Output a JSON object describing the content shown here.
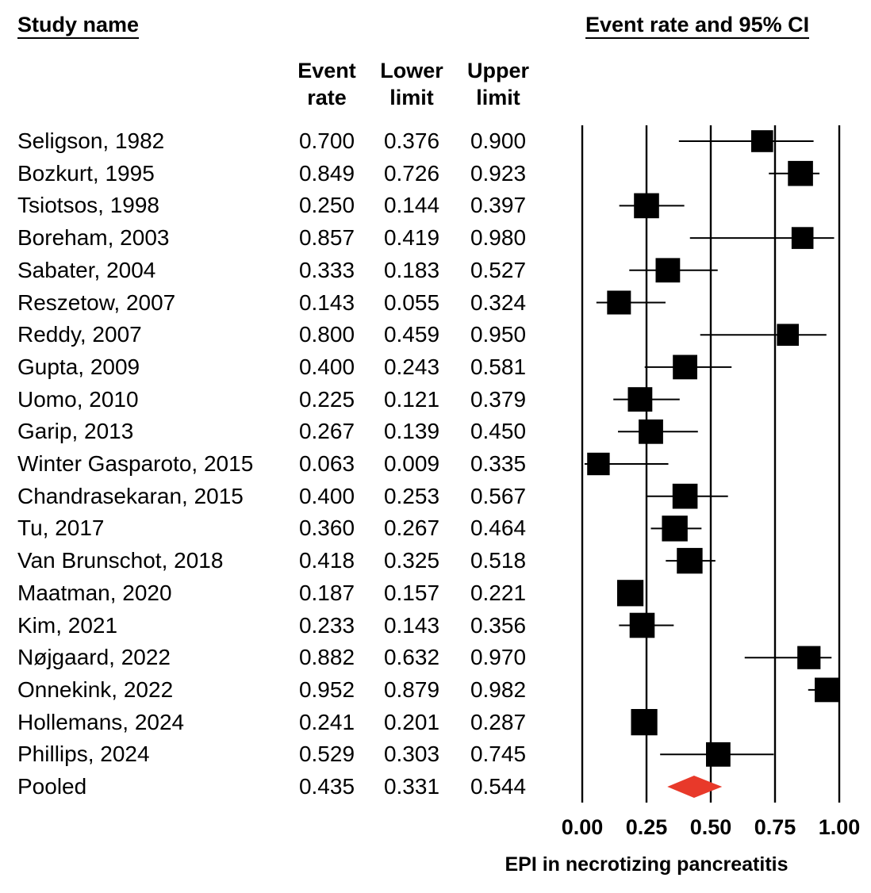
{
  "header": {
    "study_name": "Study name",
    "plot_title": "Event rate and 95% CI",
    "col_event": [
      "Event",
      "rate"
    ],
    "col_lower": [
      "Lower",
      "limit"
    ],
    "col_upper": [
      "Upper",
      "limit"
    ]
  },
  "chart_data": {
    "type": "forest",
    "xlabel": "EPI in necrotizing pancreatitis",
    "xlim": [
      0,
      1
    ],
    "ticks": [
      "0.00",
      "0.25",
      "0.50",
      "0.75",
      "1.00"
    ],
    "tick_values": [
      0,
      0.25,
      0.5,
      0.75,
      1.0
    ],
    "reference_lines": [
      0,
      0.25,
      0.5,
      0.75,
      1.0
    ],
    "square_color": "#000000",
    "pooled_color": "#e8392a",
    "studies": [
      {
        "name": "Seligson, 1982",
        "rate": "0.700",
        "lower": "0.376",
        "upper": "0.900",
        "weight": 0.6
      },
      {
        "name": "Bozkurt, 1995",
        "rate": "0.849",
        "lower": "0.726",
        "upper": "0.923",
        "weight": 0.85
      },
      {
        "name": "Tsiotsos, 1998",
        "rate": "0.250",
        "lower": "0.144",
        "upper": "0.397",
        "weight": 0.85
      },
      {
        "name": "Boreham, 2003",
        "rate": "0.857",
        "lower": "0.419",
        "upper": "0.980",
        "weight": 0.6
      },
      {
        "name": "Sabater, 2004",
        "rate": "0.333",
        "lower": "0.183",
        "upper": "0.527",
        "weight": 0.8
      },
      {
        "name": "Reszetow, 2007",
        "rate": "0.143",
        "lower": "0.055",
        "upper": "0.324",
        "weight": 0.75
      },
      {
        "name": "Reddy, 2007",
        "rate": "0.800",
        "lower": "0.459",
        "upper": "0.950",
        "weight": 0.6
      },
      {
        "name": "Gupta, 2009",
        "rate": "0.400",
        "lower": "0.243",
        "upper": "0.581",
        "weight": 0.8
      },
      {
        "name": "Uomo, 2010",
        "rate": "0.225",
        "lower": "0.121",
        "upper": "0.379",
        "weight": 0.8
      },
      {
        "name": "Garip, 2013",
        "rate": "0.267",
        "lower": "0.139",
        "upper": "0.450",
        "weight": 0.8
      },
      {
        "name": "Winter Gasparoto, 2015",
        "rate": "0.063",
        "lower": "0.009",
        "upper": "0.335",
        "weight": 0.65
      },
      {
        "name": "Chandrasekaran, 2015",
        "rate": "0.400",
        "lower": "0.253",
        "upper": "0.567",
        "weight": 0.85
      },
      {
        "name": "Tu, 2017",
        "rate": "0.360",
        "lower": "0.267",
        "upper": "0.464",
        "weight": 0.9
      },
      {
        "name": "Van Brunschot, 2018",
        "rate": "0.418",
        "lower": "0.325",
        "upper": "0.518",
        "weight": 0.9
      },
      {
        "name": "Maatman, 2020",
        "rate": "0.187",
        "lower": "0.157",
        "upper": "0.221",
        "weight": 0.95
      },
      {
        "name": "Kim, 2021",
        "rate": "0.233",
        "lower": "0.143",
        "upper": "0.356",
        "weight": 0.85
      },
      {
        "name": "Nøjgaard, 2022",
        "rate": "0.882",
        "lower": "0.632",
        "upper": "0.970",
        "weight": 0.7
      },
      {
        "name": "Onnekink, 2022",
        "rate": "0.952",
        "lower": "0.879",
        "upper": "0.982",
        "weight": 0.8
      },
      {
        "name": "Hollemans, 2024",
        "rate": "0.241",
        "lower": "0.201",
        "upper": "0.287",
        "weight": 0.95
      },
      {
        "name": "Phillips, 2024",
        "rate": "0.529",
        "lower": "0.303",
        "upper": "0.745",
        "weight": 0.8
      }
    ],
    "pooled": {
      "name": "Pooled",
      "rate": "0.435",
      "lower": "0.331",
      "upper": "0.544"
    }
  }
}
